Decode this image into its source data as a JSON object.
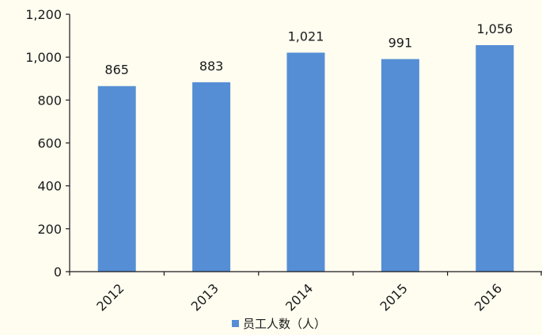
{
  "chart_data": {
    "type": "bar",
    "categories": [
      "2012",
      "2013",
      "2014",
      "2015",
      "2016"
    ],
    "series": [
      {
        "name": "员工人数（人）",
        "values": [
          865,
          883,
          1021,
          991,
          1056
        ],
        "value_labels": [
          "865",
          "883",
          "1,021",
          "991",
          "1,056"
        ],
        "color": "#558ed5"
      }
    ],
    "ylim": [
      0,
      1200
    ],
    "yticks": [
      0,
      200,
      400,
      600,
      800,
      1000,
      1200
    ],
    "ytick_labels": [
      "0",
      "200",
      "400",
      "600",
      "800",
      "1,000",
      "1,200"
    ],
    "grid": false,
    "legend": "bottom-center",
    "title": "",
    "xlabel": "",
    "ylabel": ""
  },
  "colors": {
    "background": "#fffdf0",
    "axis": "#1a1a1a"
  }
}
